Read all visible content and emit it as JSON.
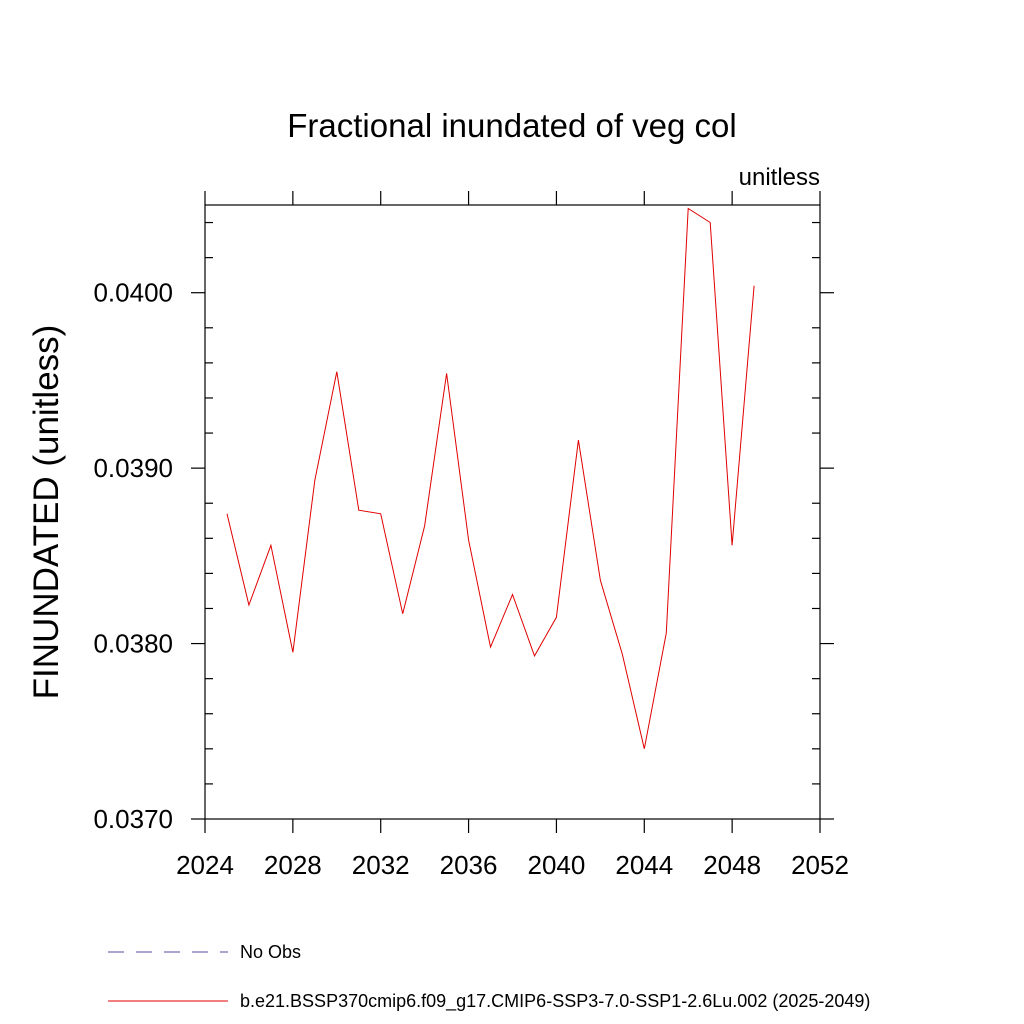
{
  "chart_data": {
    "type": "line",
    "title": "Fractional inundated of veg col",
    "units_label": "unitless",
    "ylabel": "FINUNDATED  (unitless)",
    "xlabel": "",
    "xlim": [
      2024,
      2052
    ],
    "ylim": [
      0.037,
      0.0405
    ],
    "x_ticks": [
      2024,
      2028,
      2032,
      2036,
      2040,
      2044,
      2048,
      2052
    ],
    "x_tick_labels": [
      "2024",
      "2028",
      "2032",
      "2036",
      "2040",
      "2044",
      "2048",
      "2052"
    ],
    "y_ticks": [
      0.037,
      0.038,
      0.039,
      0.04
    ],
    "y_tick_labels": [
      "0.0370",
      "0.0380",
      "0.0390",
      "0.0400"
    ],
    "grid": false,
    "legend_position": "bottom",
    "legend": [
      {
        "label": "No Obs",
        "color": "#5b4aa0",
        "dash": "dashed"
      },
      {
        "label": "b.e21.BSSP370cmip6.f09_g17.CMIP6-SSP3-7.0-SSP1-2.6Lu.002 (2025-2049)",
        "color": "#e00000",
        "dash": "solid"
      }
    ],
    "series": [
      {
        "name": "b.e21.BSSP370cmip6.f09_g17.CMIP6-SSP3-7.0-SSP1-2.6Lu.002 (2025-2049)",
        "color": "#e00000",
        "x": [
          2025,
          2026,
          2027,
          2028,
          2029,
          2030,
          2031,
          2032,
          2033,
          2034,
          2035,
          2036,
          2037,
          2038,
          2039,
          2040,
          2041,
          2042,
          2043,
          2044,
          2045,
          2046,
          2047,
          2048,
          2049
        ],
        "y": [
          0.03874,
          0.03822,
          0.03856,
          0.03795,
          0.03893,
          0.03955,
          0.03876,
          0.03874,
          0.03817,
          0.03867,
          0.03954,
          0.03859,
          0.03798,
          0.03828,
          0.03793,
          0.03815,
          0.03916,
          0.03836,
          0.03794,
          0.0374,
          0.03806,
          0.04048,
          0.0404,
          0.03856,
          0.04004
        ]
      }
    ]
  }
}
